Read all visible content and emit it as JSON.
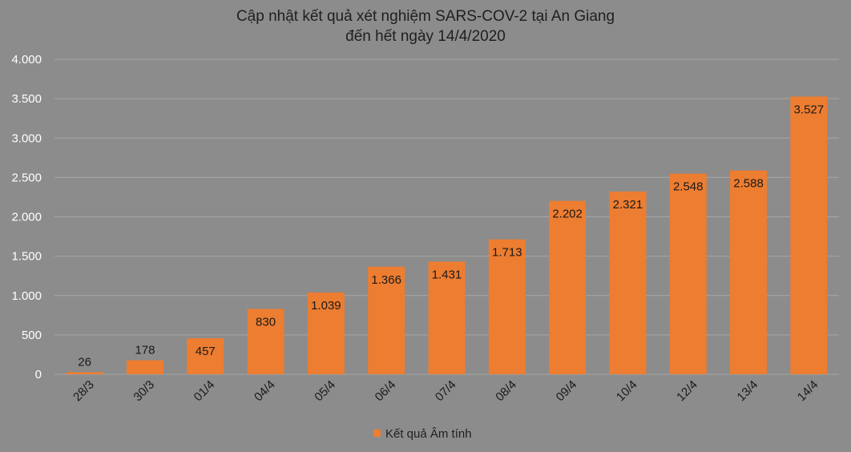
{
  "chart_data": {
    "type": "bar",
    "title": "Cập nhật kết quả xét nghiệm SARS-COV-2 tại An Giang",
    "subtitle": "đến hết ngày 14/4/2020",
    "categories": [
      "28/3",
      "30/3",
      "01/4",
      "04/4",
      "05/4",
      "06/4",
      "07/4",
      "08/4",
      "09/4",
      "10/4",
      "12/4",
      "13/4",
      "14/4"
    ],
    "series": [
      {
        "name": "Kết quả Âm tính",
        "values": [
          26,
          178,
          457,
          830,
          1039,
          1366,
          1431,
          1713,
          2202,
          2321,
          2548,
          2588,
          3527
        ],
        "labels": [
          "26",
          "178",
          "457",
          "830",
          "1.039",
          "1.366",
          "1.431",
          "1.713",
          "2.202",
          "2.321",
          "2.548",
          "2.588",
          "3.527"
        ]
      }
    ],
    "ylim": [
      0,
      4000
    ],
    "yticks": [
      0,
      500,
      1000,
      1500,
      2000,
      2500,
      3000,
      3500,
      4000
    ],
    "ytick_labels": [
      "0",
      "500",
      "1.000",
      "1.500",
      "2.000",
      "2.500",
      "3.000",
      "3.500",
      "4.000"
    ],
    "grid": true,
    "legend_position": "bottom",
    "colors": {
      "bar": "#ed7d31",
      "background": "#8c8c8c",
      "grid": "#a6a6a6"
    }
  }
}
